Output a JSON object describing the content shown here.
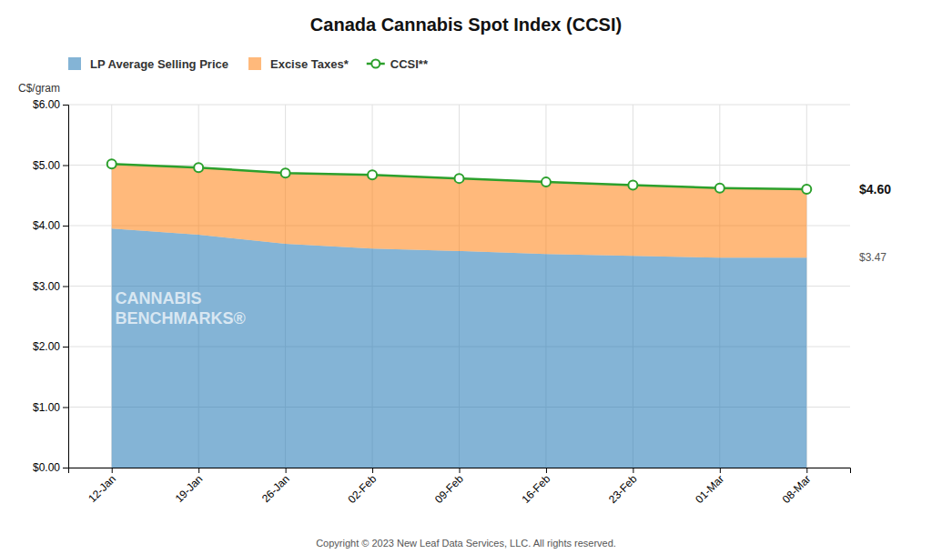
{
  "chart_data": {
    "type": "area",
    "title": "Canada Cannabis Spot Index (CCSI)",
    "y_label": "C$/gram",
    "categories": [
      "12-Jan",
      "19-Jan",
      "26-Jan",
      "02-Feb",
      "09-Feb",
      "16-Feb",
      "23-Feb",
      "01-Mar",
      "08-Mar"
    ],
    "series": [
      {
        "name": "LP Average Selling Price",
        "type": "area",
        "values": [
          3.95,
          3.85,
          3.7,
          3.62,
          3.58,
          3.53,
          3.5,
          3.47,
          3.47
        ]
      },
      {
        "name": "Excise Taxes*",
        "type": "area",
        "values": [
          5.02,
          4.96,
          4.87,
          4.84,
          4.78,
          4.72,
          4.67,
          4.62,
          4.6
        ]
      },
      {
        "name": "CCSI**",
        "type": "line",
        "marker": "circle",
        "values": [
          5.02,
          4.96,
          4.87,
          4.84,
          4.78,
          4.72,
          4.67,
          4.62,
          4.6
        ]
      }
    ],
    "ylim": [
      0.0,
      6.0
    ],
    "yticks": [
      {
        "value": 0.0,
        "label": "$0.00"
      },
      {
        "value": 1.0,
        "label": "$1.00"
      },
      {
        "value": 2.0,
        "label": "$2.00"
      },
      {
        "value": 3.0,
        "label": "$3.00"
      },
      {
        "value": 4.0,
        "label": "$4.00"
      },
      {
        "value": 5.0,
        "label": "$5.00"
      },
      {
        "value": 6.0,
        "label": "$6.00"
      }
    ],
    "grid": true,
    "legend": "upper left",
    "annotations": [
      {
        "text": "$4.60",
        "y": 4.6
      },
      {
        "text": "$3.47",
        "y": 3.47
      }
    ],
    "watermark": [
      "CANNABIS",
      "BENCHMARKS®"
    ],
    "footnote": "Copyright © 2023 New Leaf Data Services, LLC. All rights reserved."
  }
}
